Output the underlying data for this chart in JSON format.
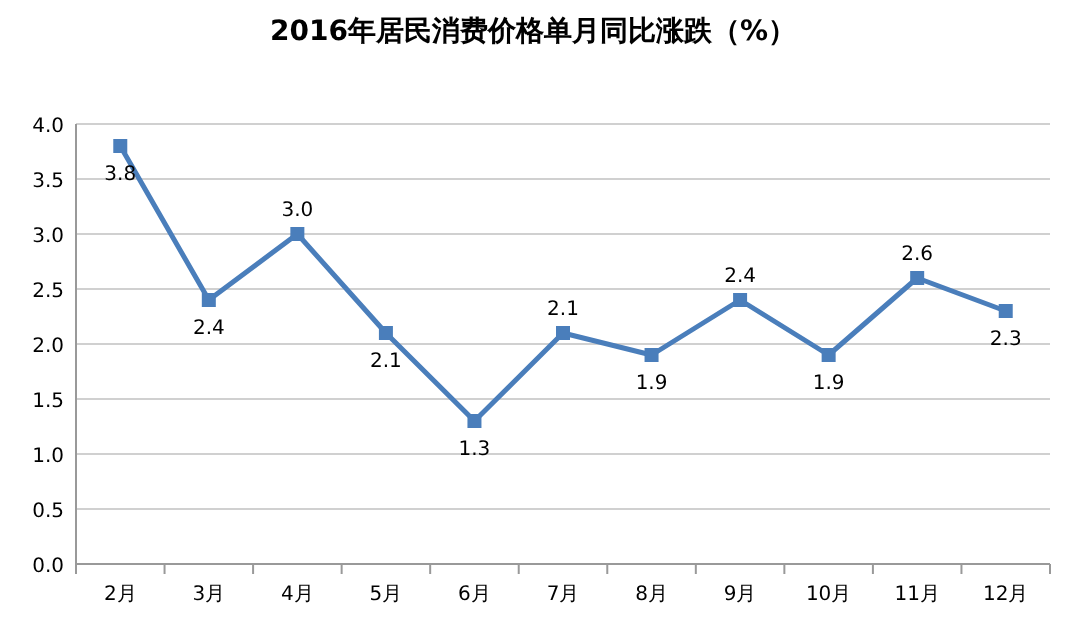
{
  "chart_data": {
    "type": "line",
    "title": "2016年居民消费价格单月同比涨跌（%）",
    "categories": [
      "2月",
      "3月",
      "4月",
      "5月",
      "6月",
      "7月",
      "8月",
      "9月",
      "10月",
      "11月",
      "12月"
    ],
    "series": [
      {
        "color": "#4a7ebb",
        "values": [
          3.8,
          2.4,
          3.0,
          2.1,
          1.3,
          2.1,
          1.9,
          2.4,
          1.9,
          2.6,
          2.3
        ],
        "value_labels": [
          "3.8",
          "2.4",
          "3.0",
          "2.1",
          "1.3",
          "2.1",
          "1.9",
          "2.4",
          "1.9",
          "2.6",
          "2.3"
        ]
      }
    ],
    "ylim": [
      0,
      4
    ],
    "yticks": [
      {
        "value": 0,
        "label": "0.0"
      },
      {
        "value": 0.5,
        "label": "0.5"
      },
      {
        "value": 1,
        "label": "1.0"
      },
      {
        "value": 1.5,
        "label": "1.5"
      },
      {
        "value": 2,
        "label": "2.0"
      },
      {
        "value": 2.5,
        "label": "2.5"
      },
      {
        "value": 3,
        "label": "3.0"
      },
      {
        "value": 3.5,
        "label": "3.5"
      },
      {
        "value": 4,
        "label": "4.0"
      }
    ],
    "grid": "y",
    "marker": "square",
    "line_style": "solid"
  }
}
